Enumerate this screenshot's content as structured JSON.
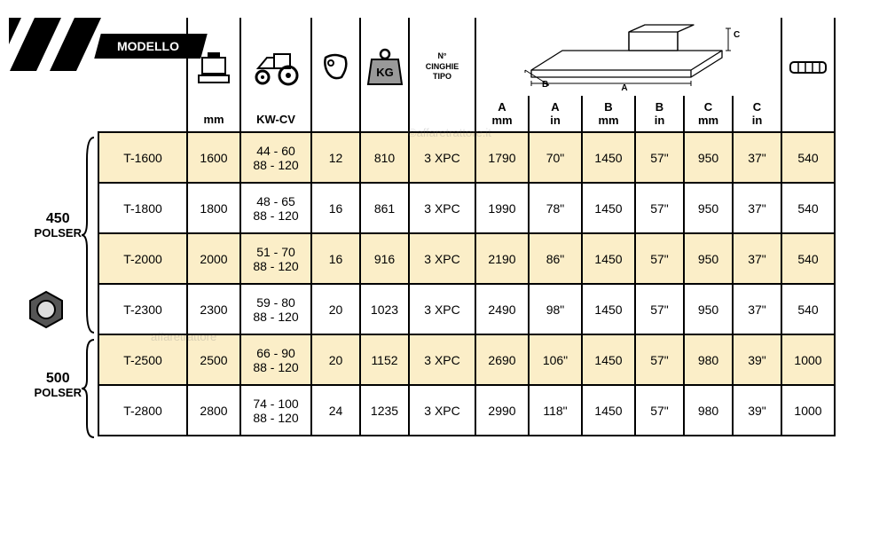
{
  "header": {
    "modello_label": "MODELLO",
    "columns": {
      "mm": "mm",
      "kwcv": "KW-CV",
      "cinghie_line1": "N°",
      "cinghie_line2": "CINGHIE",
      "cinghie_line3": "TIPO",
      "A_mm_1": "A",
      "A_mm_2": "mm",
      "A_in_1": "A",
      "A_in_2": "in",
      "B_mm_1": "B",
      "B_mm_2": "mm",
      "B_in_1": "B",
      "B_in_2": "in",
      "C_mm_1": "C",
      "C_mm_2": "mm",
      "C_in_1": "C",
      "C_in_2": "in",
      "diagram_labels": {
        "a": "A",
        "b": "B",
        "c": "C"
      }
    }
  },
  "side": {
    "group1_line1": "450",
    "group1_line2": "POLSER",
    "group2_line1": "500",
    "group2_line2": "POLSER"
  },
  "rows": [
    {
      "model": "T-1600",
      "mm": "1600",
      "kw": "44 - 60\n88 - 120",
      "blades": "12",
      "kg": "810",
      "belts": "3 XPC",
      "Amm": "1790",
      "Ain": "70\"",
      "Bmm": "1450",
      "Bin": "57\"",
      "Cmm": "950",
      "Cin": "37\"",
      "pto": "540"
    },
    {
      "model": "T-1800",
      "mm": "1800",
      "kw": "48 - 65\n88 - 120",
      "blades": "16",
      "kg": "861",
      "belts": "3 XPC",
      "Amm": "1990",
      "Ain": "78\"",
      "Bmm": "1450",
      "Bin": "57\"",
      "Cmm": "950",
      "Cin": "37\"",
      "pto": "540"
    },
    {
      "model": "T-2000",
      "mm": "2000",
      "kw": "51 - 70\n88 - 120",
      "blades": "16",
      "kg": "916",
      "belts": "3 XPC",
      "Amm": "2190",
      "Ain": "86\"",
      "Bmm": "1450",
      "Bin": "57\"",
      "Cmm": "950",
      "Cin": "37\"",
      "pto": "540"
    },
    {
      "model": "T-2300",
      "mm": "2300",
      "kw": "59 - 80\n88 - 120",
      "blades": "20",
      "kg": "1023",
      "belts": "3 XPC",
      "Amm": "2490",
      "Ain": "98\"",
      "Bmm": "1450",
      "Bin": "57\"",
      "Cmm": "950",
      "Cin": "37\"",
      "pto": "540"
    },
    {
      "model": "T-2500",
      "mm": "2500",
      "kw": "66 - 90\n88 - 120",
      "blades": "20",
      "kg": "1152",
      "belts": "3 XPC",
      "Amm": "2690",
      "Ain": "106\"",
      "Bmm": "1450",
      "Bin": "57\"",
      "Cmm": "980",
      "Cin": "39\"",
      "pto": "1000"
    },
    {
      "model": "T-2800",
      "mm": "2800",
      "kw": "74 - 100\n88 - 120",
      "blades": "24",
      "kg": "1235",
      "belts": "3 XPC",
      "Amm": "2990",
      "Ain": "118\"",
      "Bmm": "1450",
      "Bin": "57\"",
      "Cmm": "980",
      "Cin": "39\"",
      "pto": "1000"
    }
  ],
  "watermarks": {
    "top": "©affaretrattore.it",
    "mid": "affaretrattore"
  },
  "colors": {
    "alt_bg": "#fbeec8",
    "border": "#000000",
    "text": "#000000"
  }
}
